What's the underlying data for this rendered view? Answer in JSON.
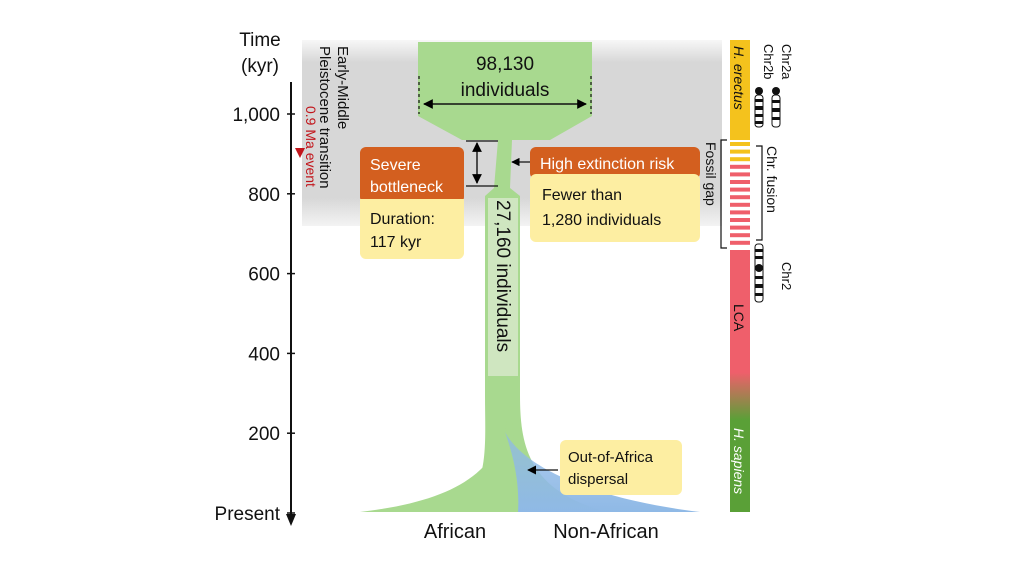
{
  "axis": {
    "label_line1": "Time",
    "label_line2": "(kyr)",
    "ticks": [
      {
        "value": 1000,
        "label": "1,000"
      },
      {
        "value": 800,
        "label": "800"
      },
      {
        "value": 600,
        "label": "600"
      },
      {
        "value": 400,
        "label": "400"
      },
      {
        "value": 200,
        "label": "200"
      },
      {
        "value": 0,
        "label": "Present"
      }
    ]
  },
  "transition": {
    "line1": "Early-Middle",
    "line2": "Pleistocene transition",
    "event_label": "0.9 Ma event"
  },
  "ancestral_population": {
    "line1": "98,130",
    "line2": "individuals"
  },
  "bottleneck_population": "27,160 individuals",
  "severe_bottleneck": {
    "line1": "Severe",
    "line2": "bottleneck",
    "duration_line1": "Duration:",
    "duration_line2": "117 kyr"
  },
  "extinction": {
    "title": "High extinction risk",
    "line1": "Fewer than",
    "line2": "1,280 individuals"
  },
  "dispersal": {
    "line1": "Out-of-Africa",
    "line2": "dispersal"
  },
  "bottom_labels": {
    "african": "African",
    "non_african": "Non-African"
  },
  "side_bar": {
    "h_erectus": "H. erectus",
    "lca": "LCA",
    "h_sapiens": "H. sapiens",
    "fossil_gap": "Fossil gap",
    "chr_fusion": "Chr. fusion",
    "chr2a": "Chr2a",
    "chr2b": "Chr2b",
    "chr2": "Chr2"
  },
  "colors": {
    "green": "#a8d98f",
    "green_dark": "#5aa037",
    "orange": "#d35f1f",
    "yellow_box": "#fdeea2",
    "grey_band": "#d7d7d7",
    "red_event": "#c2151b",
    "blue": "#8fb9e6",
    "yellow_bar": "#f4c21d",
    "red_bar": "#ef5f6b"
  }
}
